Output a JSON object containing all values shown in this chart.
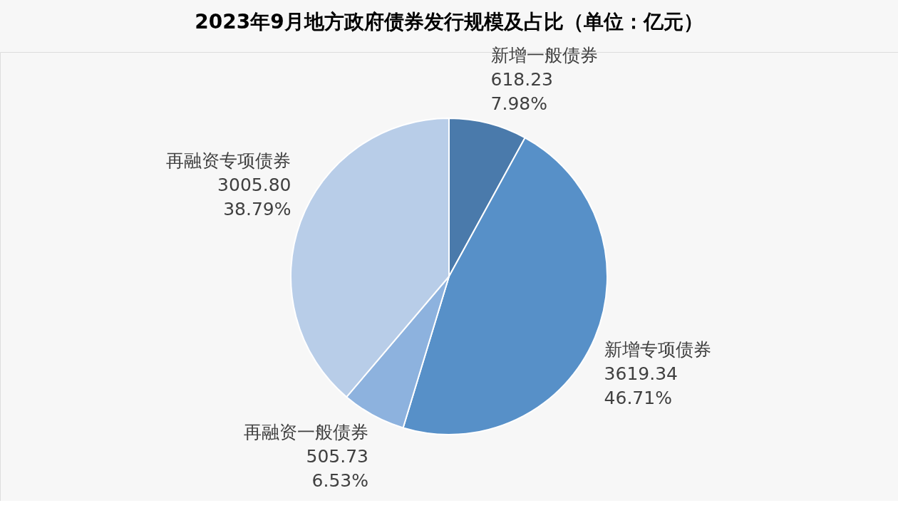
{
  "chart_data": {
    "type": "pie",
    "title": "2023年9月地方政府债券发行规模及占比（单位：亿元）",
    "categories": [
      "新增一般债券",
      "新增专项债券",
      "再融资一般债券",
      "再融资专项债券"
    ],
    "values": [
      618.23,
      3619.34,
      505.73,
      3005.8
    ],
    "colors": [
      "#4a7aab",
      "#5790c8",
      "#8db2de",
      "#b8cde8"
    ],
    "value_labels": [
      "618.23\n7.98%",
      "3619.34\n46.71%",
      "505.73\n6.53%",
      "3005.80\n38.79%"
    ],
    "legend": false
  }
}
